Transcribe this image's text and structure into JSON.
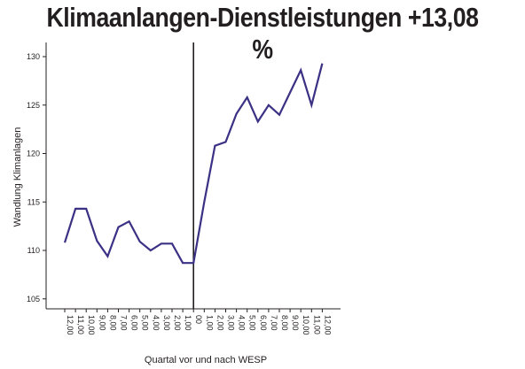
{
  "chart_data": {
    "type": "line",
    "title": "Klimaanlangen-Dienstleistungen +13,08 %",
    "xlabel": "Quartal vor und nach WESP",
    "ylabel": "Wandlung  Klimanlagen",
    "categories": [
      "-12,00",
      "-11,00",
      "-10,00",
      "-9,00",
      "-8,00",
      "-7,00",
      "-6,00",
      "-5,00",
      "-4,00",
      "-3,00",
      "-2,00",
      "-1,00",
      "0,00",
      "1,00",
      "2,00",
      "3,00",
      "4,00",
      "5,00",
      "6,00",
      "7,00",
      "8,00",
      "9,00",
      "10,00",
      "11,00",
      "12,00"
    ],
    "tick_labels": [
      "12,00",
      "11,00",
      "10,00",
      "9,00",
      "8,00",
      "7,00",
      "6,00",
      "5,00",
      "4,00",
      "3,00",
      "2,00",
      "1,00",
      "00",
      "1,00",
      "2,00",
      "3,00",
      "4,00",
      "5,00",
      "6,00",
      "7,00",
      "8,00",
      "9,00",
      "10,00",
      "11,00",
      "12,00"
    ],
    "values": [
      110.8,
      114.3,
      114.3,
      111.0,
      109.4,
      112.4,
      113.0,
      110.9,
      110.0,
      110.7,
      110.7,
      108.7,
      108.7,
      115.0,
      120.8,
      121.2,
      124.1,
      125.8,
      123.3,
      125.0,
      124.0,
      126.3,
      128.6,
      125.0,
      129.3
    ],
    "yticks": [
      105,
      110,
      115,
      120,
      125,
      130
    ],
    "ylim": [
      104,
      131
    ],
    "vertical_marker_at": "0,00",
    "grid": false,
    "line_color": "#3a3185",
    "axis_color": "#231f20"
  }
}
